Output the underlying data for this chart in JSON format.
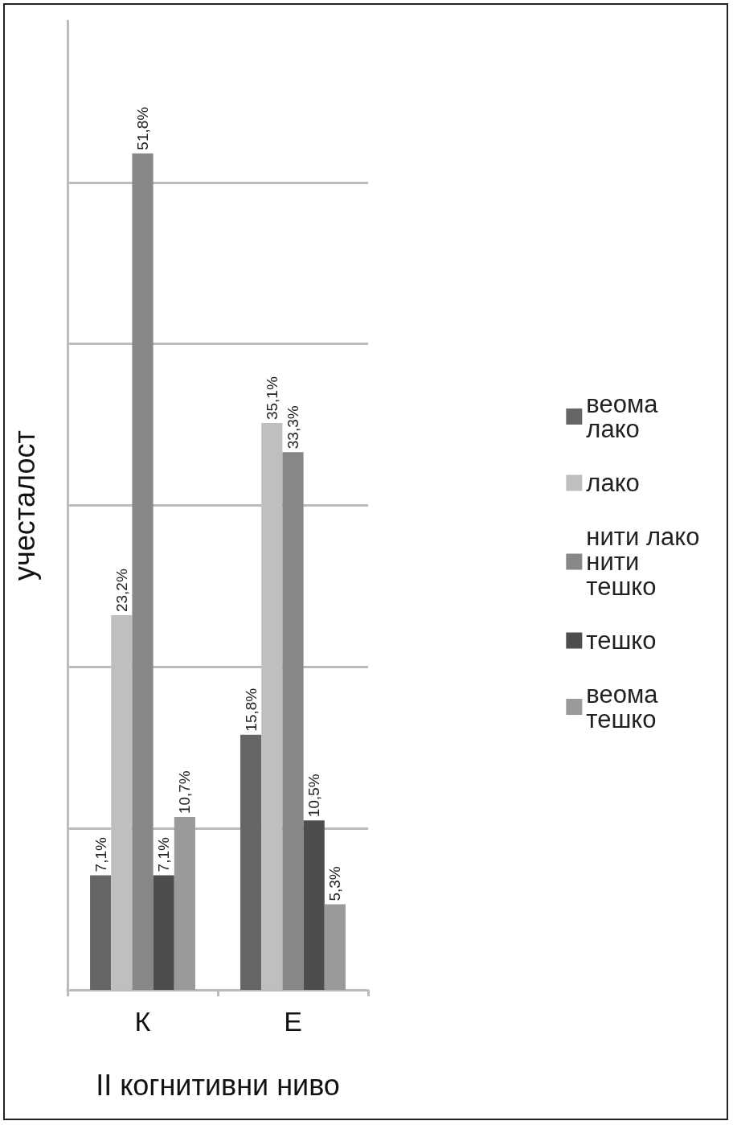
{
  "chart_data": {
    "type": "bar",
    "xlabel": "II когнитивни ниво",
    "ylabel": "учесталост",
    "categories": [
      "К",
      "Е"
    ],
    "series": [
      {
        "name": "веома лако",
        "color": "#666666",
        "values": [
          7.1,
          15.8
        ],
        "value_labels": [
          "7,1%",
          "15,8%"
        ]
      },
      {
        "name": "лако",
        "color": "#bfbfbf",
        "values": [
          23.2,
          35.1
        ],
        "value_labels": [
          "23,2%",
          "35,1%"
        ]
      },
      {
        "name": "нити лако нити тешко",
        "color": "#878787",
        "values": [
          51.8,
          33.3
        ],
        "value_labels": [
          "51,8%",
          "33,3%"
        ]
      },
      {
        "name": "тешко",
        "color": "#4d4d4d",
        "values": [
          7.1,
          10.5
        ],
        "value_labels": [
          "7,1%",
          "10,5%"
        ]
      },
      {
        "name": "веома тешко",
        "color": "#9a9a9a",
        "values": [
          10.7,
          5.3
        ],
        "value_labels": [
          "10,7%",
          "5,3%"
        ]
      }
    ],
    "ylim": [
      0,
      60
    ],
    "yticks": [
      {
        "value": 0,
        "label": null
      },
      {
        "value": 10,
        "label": null
      },
      {
        "value": 20,
        "label": null
      },
      {
        "value": 30,
        "label": null
      },
      {
        "value": 40,
        "label": null
      },
      {
        "value": 50,
        "label": null
      }
    ],
    "tick_labels": "x",
    "grid": "y",
    "legend": "right"
  }
}
